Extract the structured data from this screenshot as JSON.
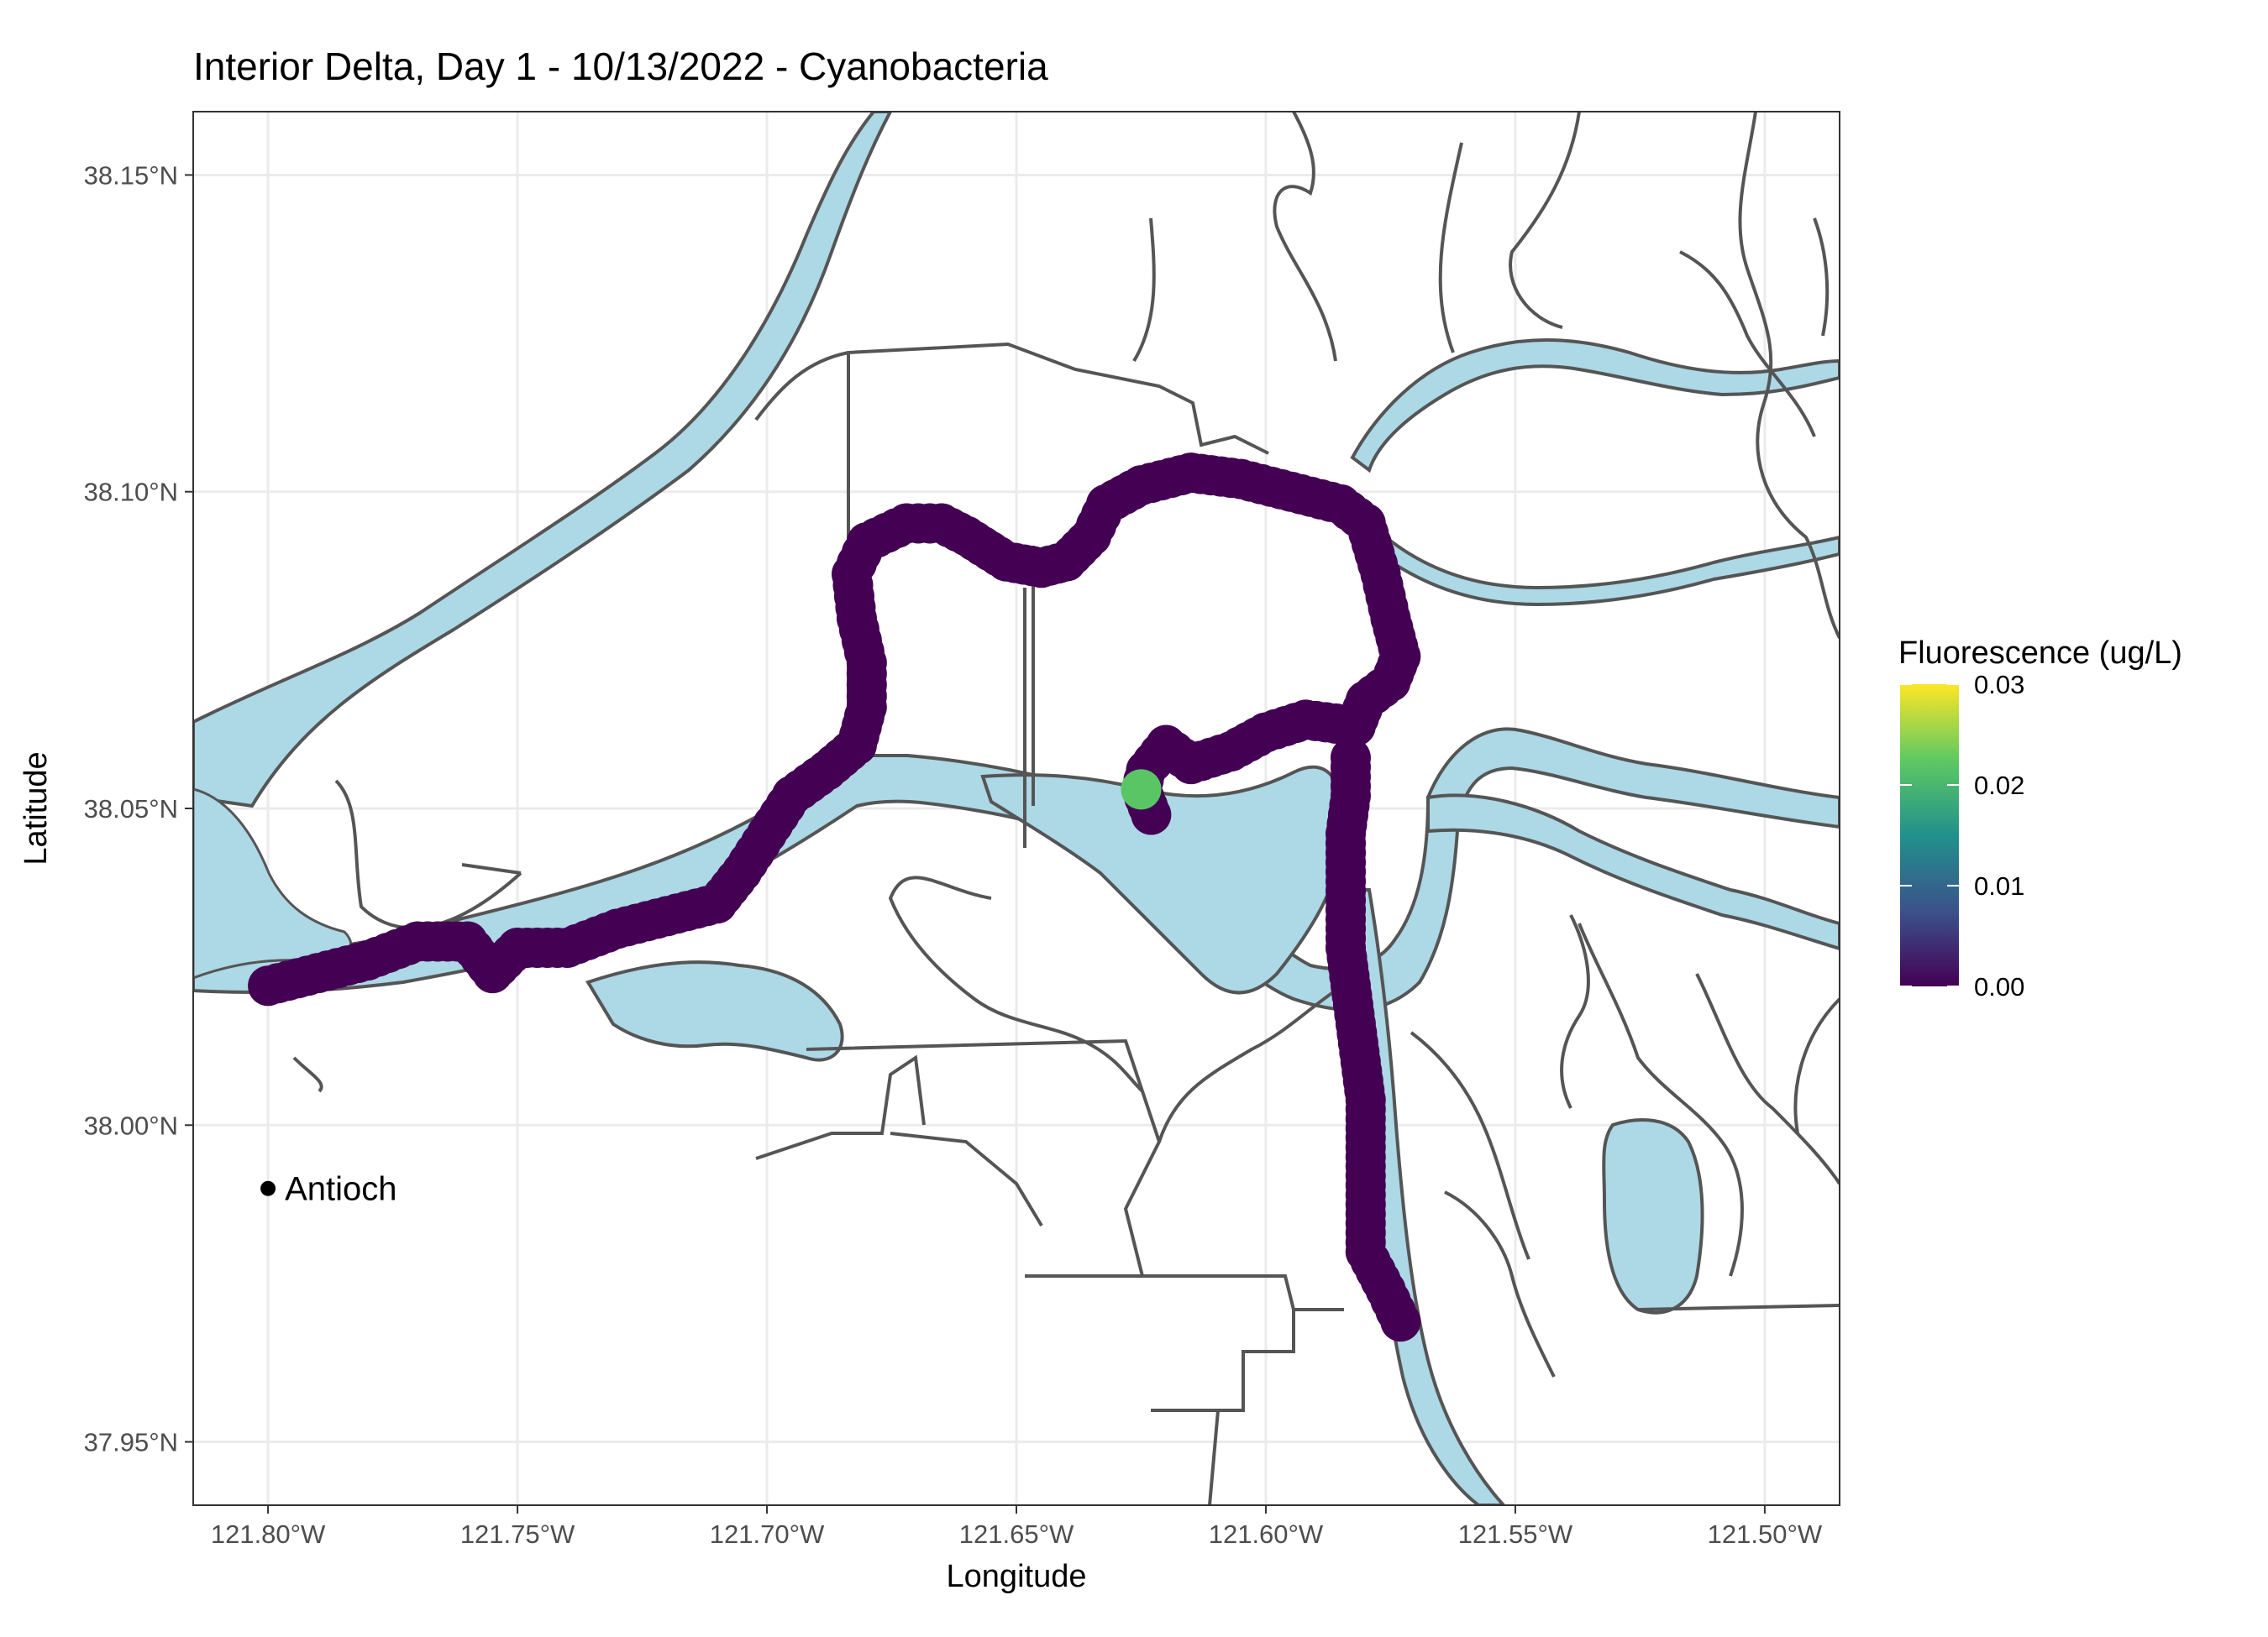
{
  "chart_data": {
    "type": "map",
    "title": "Interior Delta, Day 1 - 10/13/2022 - Cyanobacteria",
    "xlabel": "Longitude",
    "ylabel": "Latitude",
    "xlim": [
      -121.815,
      -121.485
    ],
    "ylim": [
      37.94,
      38.16
    ],
    "x_ticks": [
      {
        "value": -121.8,
        "label": "121.80°W"
      },
      {
        "value": -121.75,
        "label": "121.75°W"
      },
      {
        "value": -121.7,
        "label": "121.70°W"
      },
      {
        "value": -121.65,
        "label": "121.65°W"
      },
      {
        "value": -121.6,
        "label": "121.60°W"
      },
      {
        "value": -121.55,
        "label": "121.55°W"
      },
      {
        "value": -121.5,
        "label": "121.50°W"
      }
    ],
    "y_ticks": [
      {
        "value": 37.95,
        "label": "37.95°N"
      },
      {
        "value": 38.0,
        "label": "38.00°N"
      },
      {
        "value": 38.05,
        "label": "38.05°N"
      },
      {
        "value": 38.1,
        "label": "38.10°N"
      },
      {
        "value": 38.15,
        "label": "38.15°N"
      }
    ],
    "grid": true,
    "legend": {
      "title": "Fluorescence (ug/L)",
      "position": "right",
      "scale": "viridis",
      "range": [
        0.0,
        0.03
      ],
      "labels": [
        "0.03",
        "0.02",
        "0.01",
        "0.00"
      ],
      "label_values": [
        0.03,
        0.02,
        0.01,
        0.0
      ]
    },
    "city": {
      "name": "Antioch",
      "lon": -121.8,
      "lat": 37.99
    },
    "track": [
      [
        -121.8,
        38.022,
        0.0
      ],
      [
        -121.79,
        38.024,
        0.0
      ],
      [
        -121.78,
        38.026,
        0.0
      ],
      [
        -121.77,
        38.029,
        0.0
      ],
      [
        -121.76,
        38.029,
        0.0
      ],
      [
        -121.755,
        38.024,
        0.0
      ],
      [
        -121.75,
        38.028,
        0.0
      ],
      [
        -121.74,
        38.028,
        0.0
      ],
      [
        -121.73,
        38.031,
        0.0
      ],
      [
        -121.72,
        38.033,
        0.0
      ],
      [
        -121.71,
        38.035,
        0.0
      ],
      [
        -121.705,
        38.04,
        0.0
      ],
      [
        -121.7,
        38.046,
        0.0
      ],
      [
        -121.695,
        38.052,
        0.0
      ],
      [
        -121.688,
        38.056,
        0.0
      ],
      [
        -121.682,
        38.06,
        0.0
      ],
      [
        -121.68,
        38.066,
        0.0
      ],
      [
        -121.68,
        38.073,
        0.0
      ],
      [
        -121.682,
        38.08,
        0.0
      ],
      [
        -121.683,
        38.087,
        0.0
      ],
      [
        -121.68,
        38.092,
        0.0
      ],
      [
        -121.672,
        38.095,
        0.0
      ],
      [
        -121.665,
        38.095,
        0.0
      ],
      [
        -121.66,
        38.093,
        0.0
      ],
      [
        -121.652,
        38.089,
        0.0
      ],
      [
        -121.645,
        38.088,
        0.0
      ],
      [
        -121.64,
        38.089,
        0.0
      ],
      [
        -121.635,
        38.093,
        0.0
      ],
      [
        -121.632,
        38.098,
        0.0
      ],
      [
        -121.625,
        38.101,
        0.0
      ],
      [
        -121.615,
        38.103,
        0.0
      ],
      [
        -121.605,
        38.102,
        0.0
      ],
      [
        -121.595,
        38.1,
        0.0
      ],
      [
        -121.585,
        38.098,
        0.0
      ],
      [
        -121.58,
        38.095,
        0.0
      ],
      [
        -121.577,
        38.087,
        0.0
      ],
      [
        -121.575,
        38.08,
        0.0
      ],
      [
        -121.573,
        38.074,
        0.0
      ],
      [
        -121.575,
        38.07,
        0.0
      ],
      [
        -121.58,
        38.067,
        0.0
      ],
      [
        -121.582,
        38.063,
        0.0
      ],
      [
        -121.592,
        38.064,
        0.0
      ],
      [
        -121.6,
        38.062,
        0.0
      ],
      [
        -121.607,
        38.059,
        0.0
      ],
      [
        -121.615,
        38.057,
        0.0
      ],
      [
        -121.62,
        38.06,
        0.0
      ],
      [
        -121.624,
        38.056,
        0.0
      ],
      [
        -121.625,
        38.053,
        0.022
      ],
      [
        -121.623,
        38.049,
        0.0
      ],
      [
        -121.583,
        38.058,
        0.0
      ],
      [
        -121.583,
        38.052,
        0.0
      ],
      [
        -121.584,
        38.046,
        0.0
      ],
      [
        -121.584,
        38.04,
        0.0
      ],
      [
        -121.584,
        38.034,
        0.0
      ],
      [
        -121.584,
        38.028,
        0.0
      ],
      [
        -121.583,
        38.022,
        0.0
      ],
      [
        -121.582,
        38.016,
        0.0
      ],
      [
        -121.581,
        38.01,
        0.0
      ],
      [
        -121.58,
        38.004,
        0.0
      ],
      [
        -121.58,
        37.998,
        0.0
      ],
      [
        -121.58,
        37.992,
        0.0
      ],
      [
        -121.58,
        37.986,
        0.0
      ],
      [
        -121.58,
        37.98,
        0.0
      ],
      [
        -121.576,
        37.974,
        0.0
      ],
      [
        -121.573,
        37.969,
        0.0
      ]
    ]
  }
}
